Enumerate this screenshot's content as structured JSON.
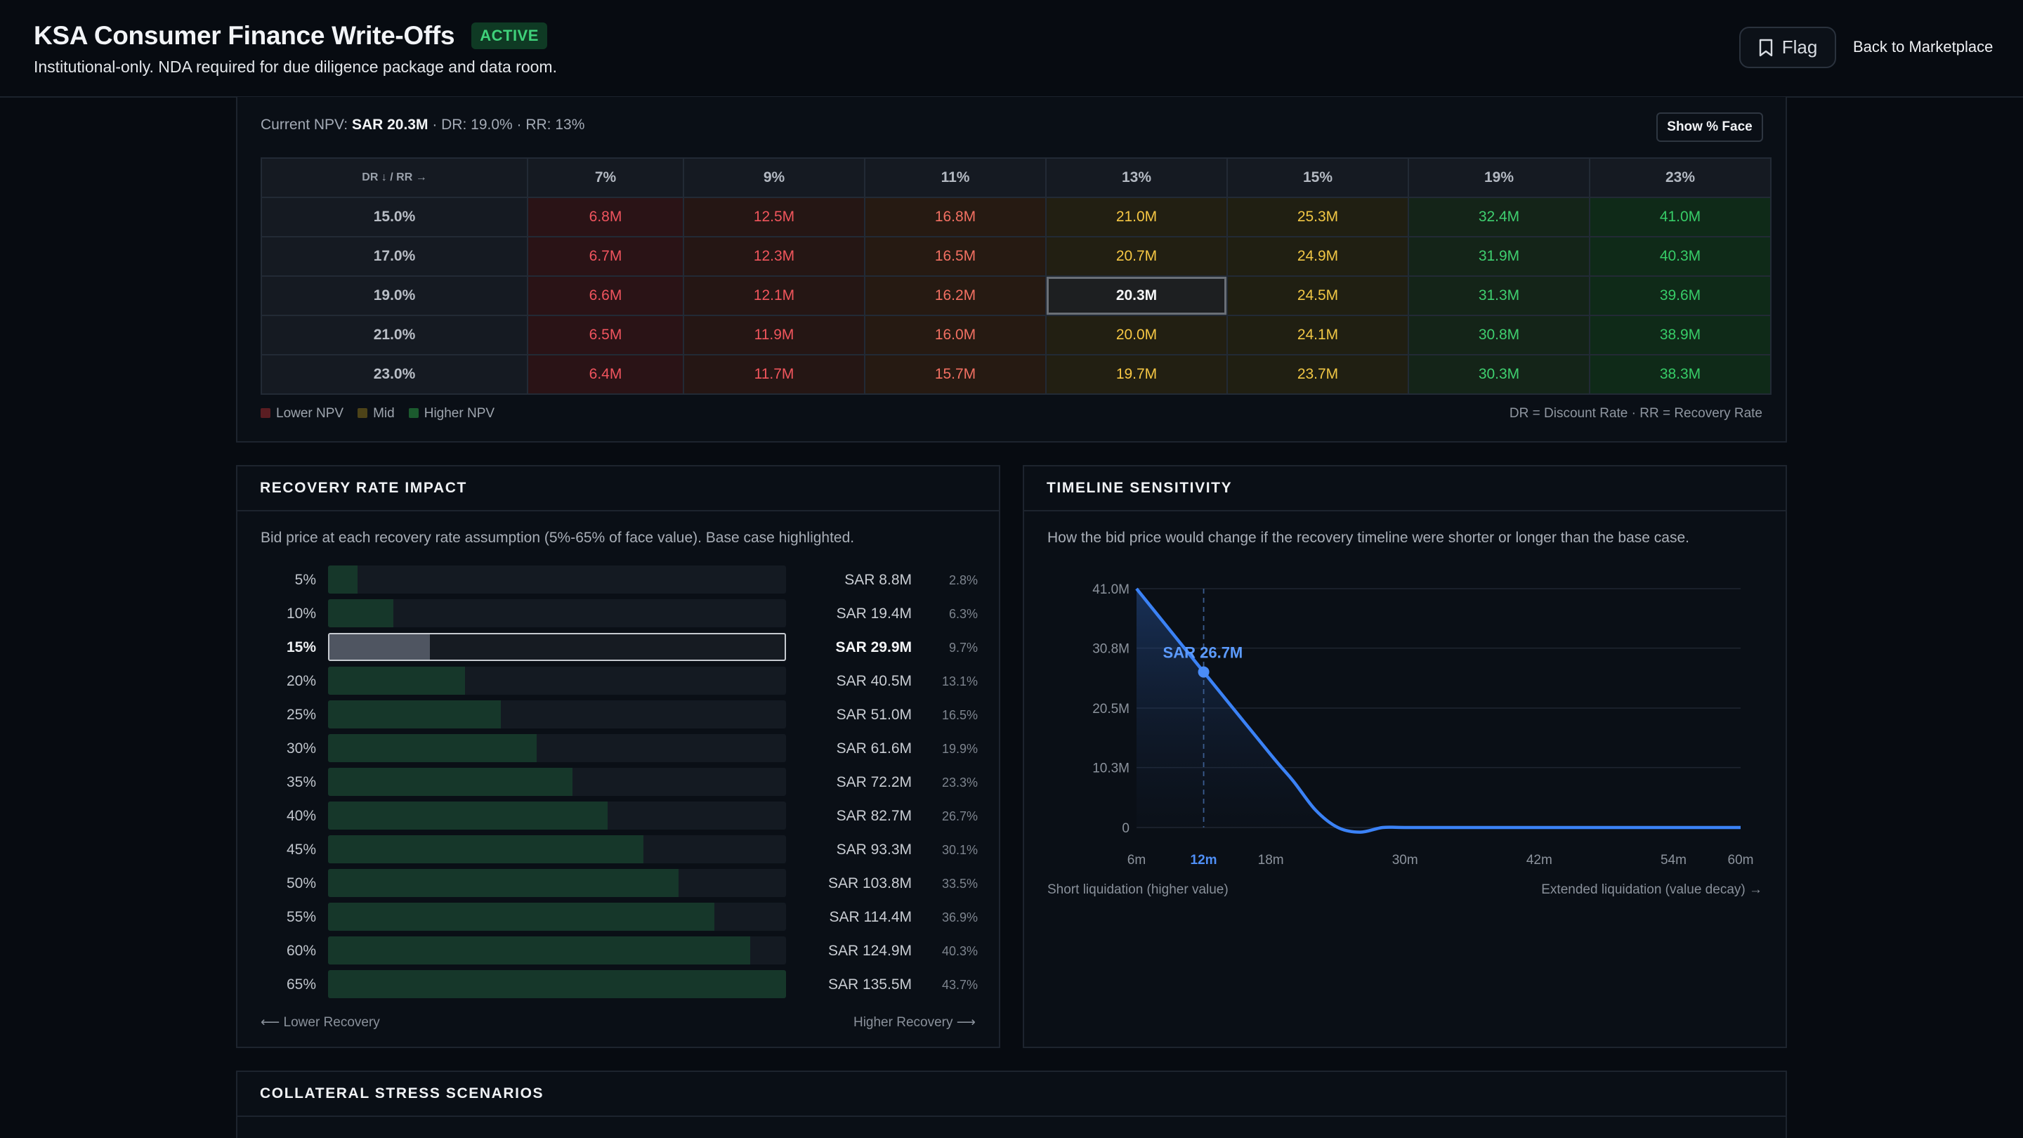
{
  "header": {
    "title": "KSA Consumer Finance Write-Offs",
    "status_badge": "ACTIVE",
    "subtitle": "Institutional-only. NDA required for due diligence package and data room.",
    "flag_label": "Flag",
    "back_label": "Back to Marketplace"
  },
  "npv_grid": {
    "current_prefix": "Current NPV: ",
    "current_value": "SAR 20.3M",
    "current_suffix": " · DR: 19.0% · RR: 13%",
    "toggle_label": "Show % Face",
    "corner_label": "DR ↓ / RR →",
    "columns": [
      "7%",
      "9%",
      "11%",
      "13%",
      "15%",
      "19%",
      "23%"
    ],
    "rows": [
      {
        "dr": "15.0%",
        "values": [
          "6.8M",
          "12.5M",
          "16.8M",
          "21.0M",
          "25.3M",
          "32.4M",
          "41.0M"
        ]
      },
      {
        "dr": "17.0%",
        "values": [
          "6.7M",
          "12.3M",
          "16.5M",
          "20.7M",
          "24.9M",
          "31.9M",
          "40.3M"
        ]
      },
      {
        "dr": "19.0%",
        "values": [
          "6.6M",
          "12.1M",
          "16.2M",
          "20.3M",
          "24.5M",
          "31.3M",
          "39.6M"
        ]
      },
      {
        "dr": "21.0%",
        "values": [
          "6.5M",
          "11.9M",
          "16.0M",
          "20.0M",
          "24.1M",
          "30.8M",
          "38.9M"
        ]
      },
      {
        "dr": "23.0%",
        "values": [
          "6.4M",
          "11.7M",
          "15.7M",
          "19.7M",
          "23.7M",
          "30.3M",
          "38.3M"
        ]
      }
    ],
    "legend": {
      "low": "Lower NPV",
      "mid": "Mid",
      "high": "Higher NPV"
    },
    "legend_note": "DR = Discount Rate · RR = Recovery Rate",
    "colors": {
      "low": "#5a1d22",
      "mid": "#4d4318",
      "high": "#1b5a2e"
    }
  },
  "recovery": {
    "title": "RECOVERY RATE IMPACT",
    "description": "Bid price at each recovery rate assumption (5%-65% of face value). Base case highlighted.",
    "rows": [
      {
        "rate": "5%",
        "amount": "SAR 8.8M",
        "pct": "2.8%",
        "fill": 0.065
      },
      {
        "rate": "10%",
        "amount": "SAR 19.4M",
        "pct": "6.3%",
        "fill": 0.143
      },
      {
        "rate": "15%",
        "amount": "SAR 29.9M",
        "pct": "9.7%",
        "fill": 0.221,
        "base": true
      },
      {
        "rate": "20%",
        "amount": "SAR 40.5M",
        "pct": "13.1%",
        "fill": 0.299
      },
      {
        "rate": "25%",
        "amount": "SAR 51.0M",
        "pct": "16.5%",
        "fill": 0.377
      },
      {
        "rate": "30%",
        "amount": "SAR 61.6M",
        "pct": "19.9%",
        "fill": 0.455
      },
      {
        "rate": "35%",
        "amount": "SAR 72.2M",
        "pct": "23.3%",
        "fill": 0.533
      },
      {
        "rate": "40%",
        "amount": "SAR 82.7M",
        "pct": "26.7%",
        "fill": 0.61
      },
      {
        "rate": "45%",
        "amount": "SAR 93.3M",
        "pct": "30.1%",
        "fill": 0.689
      },
      {
        "rate": "50%",
        "amount": "SAR 103.8M",
        "pct": "33.5%",
        "fill": 0.766
      },
      {
        "rate": "55%",
        "amount": "SAR 114.4M",
        "pct": "36.9%",
        "fill": 0.844
      },
      {
        "rate": "60%",
        "amount": "SAR 124.9M",
        "pct": "40.3%",
        "fill": 0.922
      },
      {
        "rate": "65%",
        "amount": "SAR 135.5M",
        "pct": "43.7%",
        "fill": 1.0
      }
    ],
    "foot_left": "⟵ Lower Recovery",
    "foot_right": "Higher Recovery ⟶"
  },
  "timeline": {
    "title": "TIMELINE SENSITIVITY",
    "description": "How the bid price would change if the recovery timeline were shorter or longer than the base case.",
    "foot_left": "Short liquidation (higher value)",
    "foot_right": "Extended liquidation (value decay) →"
  },
  "chart_data": {
    "type": "line",
    "x_tick_labels": [
      "6m",
      "12m",
      "18m",
      "30m",
      "42m",
      "54m",
      "60m"
    ],
    "x_ticks": [
      6,
      12,
      18,
      30,
      42,
      54,
      60
    ],
    "y_tick_labels": [
      "41.0M",
      "30.8M",
      "20.5M",
      "10.3M",
      "0"
    ],
    "y_ticks": [
      41.0,
      30.8,
      20.5,
      10.3,
      0
    ],
    "ylim": [
      0,
      41.0
    ],
    "xlim": [
      6,
      60
    ],
    "x": [
      6,
      12,
      18,
      20,
      22,
      24,
      26,
      28,
      30,
      36,
      42,
      48,
      54,
      60
    ],
    "y": [
      41.0,
      26.7,
      12.5,
      8.0,
      3.0,
      0.0,
      -0.8,
      0.0,
      0.0,
      0.0,
      0.0,
      0.0,
      0.0,
      0.0
    ],
    "highlight": {
      "x": 12,
      "label": "SAR 26.7M"
    },
    "grid": true,
    "line_color": "#3b82f6"
  },
  "collateral": {
    "title": "COLLATERAL STRESS SCENARIOS"
  }
}
